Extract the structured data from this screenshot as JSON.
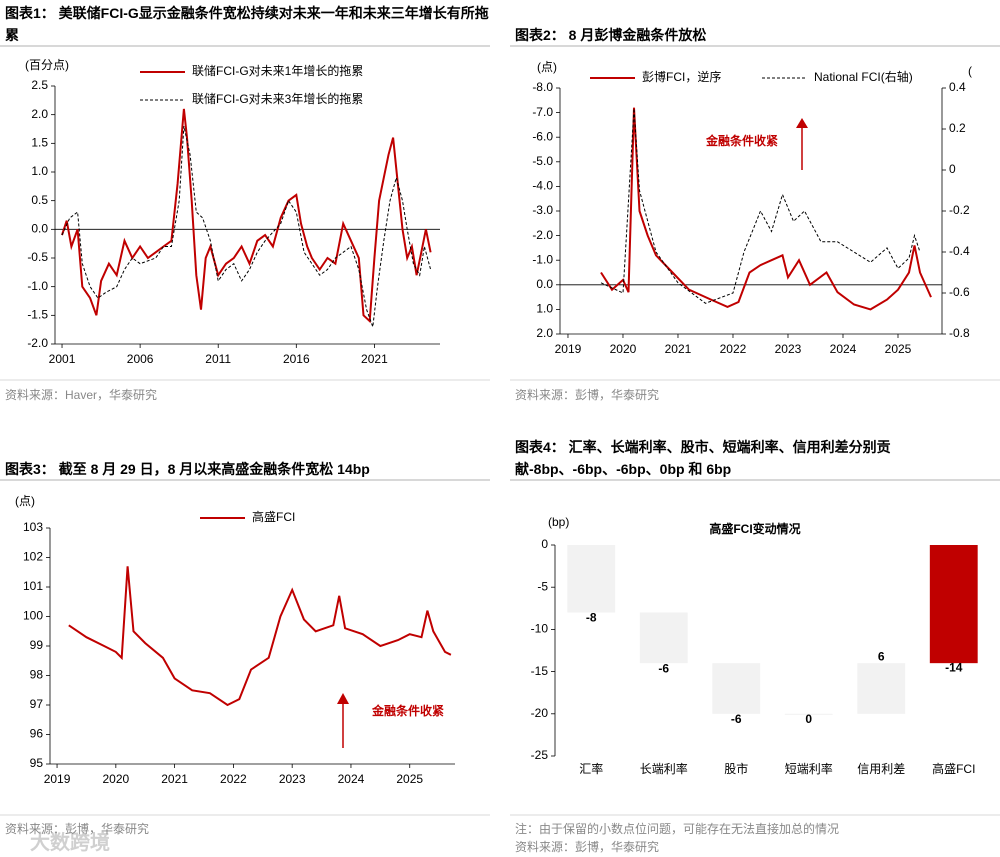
{
  "chart_data": [
    {
      "type": "line",
      "caption": "图表1：  美联储FCI-G显示金融条件宽松持续对未来一年和未来三年增长有所拖累",
      "y_label": "(百分点)",
      "xlim": [
        2000.55,
        2025.2
      ],
      "xticks": [
        2001,
        2006,
        2011,
        2016,
        2021
      ],
      "ylim": [
        -2,
        2.5
      ],
      "yticks": [
        2.5,
        {
          "value": 2,
          "label": "2.0"
        },
        1.5,
        {
          "value": 1,
          "label": "1.0"
        },
        0.5,
        {
          "value": 0,
          "label": "0.0"
        },
        -0.5,
        {
          "value": -1,
          "label": "-1.0"
        },
        -1.5,
        {
          "value": -2,
          "label": "-2.0"
        }
      ],
      "zero_line": true,
      "legend": "top",
      "series": [
        {
          "name": "联储FCI-G对未来1年增长的拖累",
          "color": "#c00000",
          "line_style": "solid",
          "x": [
            2001.0,
            2001.3,
            2001.6,
            2002.0,
            2002.3,
            2002.8,
            2003.2,
            2003.5,
            2004.0,
            2004.5,
            2005.0,
            2005.5,
            2006.0,
            2006.5,
            2007.0,
            2007.5,
            2008.0,
            2008.4,
            2008.8,
            2009.0,
            2009.3,
            2009.6,
            2009.9,
            2010.2,
            2010.5,
            2011.0,
            2011.5,
            2012.0,
            2012.5,
            2013.0,
            2013.5,
            2014.0,
            2014.5,
            2015.0,
            2015.5,
            2016.0,
            2016.3,
            2016.7,
            2017.0,
            2017.5,
            2018.0,
            2018.5,
            2019.0,
            2019.5,
            2020.0,
            2020.3,
            2020.7,
            2021.0,
            2021.3,
            2021.6,
            2021.9,
            2022.2,
            2022.5,
            2022.8,
            2023.1,
            2023.4,
            2023.7,
            2024.0,
            2024.3,
            2024.6
          ],
          "values": [
            -0.1,
            0.15,
            -0.3,
            0.0,
            -1.0,
            -1.2,
            -1.5,
            -0.9,
            -0.6,
            -0.8,
            -0.2,
            -0.5,
            -0.3,
            -0.5,
            -0.4,
            -0.3,
            -0.2,
            0.8,
            2.1,
            1.6,
            0.5,
            -0.8,
            -1.4,
            -0.5,
            -0.3,
            -0.8,
            -0.6,
            -0.5,
            -0.3,
            -0.6,
            -0.2,
            -0.1,
            -0.3,
            0.2,
            0.5,
            0.6,
            0.1,
            -0.3,
            -0.5,
            -0.7,
            -0.5,
            -0.6,
            0.1,
            -0.2,
            -0.5,
            -1.5,
            -1.6,
            -0.5,
            0.5,
            0.9,
            1.3,
            1.6,
            0.8,
            0.0,
            -0.5,
            -0.3,
            -0.8,
            -0.4,
            0.0,
            -0.4
          ]
        },
        {
          "name": "联储FCI-G对未来3年增长的拖累",
          "color": "#000000",
          "line_style": "dashed",
          "x": [
            2001.0,
            2001.5,
            2002.0,
            2002.3,
            2002.8,
            2003.3,
            2003.8,
            2004.5,
            2005.0,
            2005.5,
            2006.0,
            2007.0,
            2007.5,
            2008.0,
            2008.5,
            2008.8,
            2009.2,
            2009.6,
            2010.0,
            2010.5,
            2011.0,
            2011.5,
            2012.0,
            2012.5,
            2013.0,
            2013.5,
            2014.0,
            2015.0,
            2015.5,
            2016.0,
            2016.5,
            2017.0,
            2017.5,
            2018.0,
            2018.5,
            2019.0,
            2019.5,
            2020.0,
            2020.5,
            2020.9,
            2021.2,
            2021.6,
            2022.0,
            2022.4,
            2022.8,
            2023.1,
            2023.5,
            2023.9,
            2024.2,
            2024.6
          ],
          "values": [
            -0.1,
            0.2,
            0.3,
            -0.6,
            -1.0,
            -1.2,
            -1.1,
            -1.0,
            -0.7,
            -0.5,
            -0.6,
            -0.5,
            -0.3,
            -0.3,
            0.5,
            1.8,
            1.3,
            0.3,
            0.2,
            -0.2,
            -0.9,
            -0.7,
            -0.6,
            -0.9,
            -0.7,
            -0.4,
            -0.2,
            0.1,
            0.5,
            0.3,
            -0.4,
            -0.6,
            -0.8,
            -0.7,
            -0.5,
            -0.4,
            -0.3,
            -0.7,
            -1.4,
            -1.7,
            -1.0,
            -0.2,
            0.5,
            0.9,
            0.5,
            0.0,
            -0.6,
            -0.8,
            -0.3,
            -0.7
          ]
        }
      ],
      "source": "资料来源：Haver，华泰研究"
    },
    {
      "type": "line",
      "caption": "图表2：  8 月彭博金融条件放松",
      "y_label": "(点)",
      "y2_label": "(",
      "xlim": [
        2018.855,
        2025.8
      ],
      "xticks": [
        2019,
        2020,
        2021,
        2022,
        2023,
        2024,
        2025
      ],
      "ylim": [
        -8,
        2
      ],
      "y_inverted": true,
      "yticks": [
        {
          "value": -8,
          "label": "-8.0"
        },
        {
          "value": -7,
          "label": "-7.0"
        },
        {
          "value": -6,
          "label": "-6.0"
        },
        {
          "value": -5,
          "label": "-5.0"
        },
        {
          "value": -4,
          "label": "-4.0"
        },
        {
          "value": -3,
          "label": "-3.0"
        },
        {
          "value": -2,
          "label": "-2.0"
        },
        {
          "value": -1,
          "label": "-1.0"
        },
        {
          "value": 0,
          "label": "0.0"
        },
        {
          "value": 1,
          "label": "1.0"
        },
        {
          "value": 2,
          "label": "2.0"
        }
      ],
      "y2lim": [
        -0.8,
        0.4
      ],
      "y2ticks": [
        0.4,
        0.2,
        0,
        -0.2,
        -0.4,
        -0.6,
        -0.8
      ],
      "zero_line": true,
      "legend": "top",
      "annotation": "金融条件收紧",
      "series": [
        {
          "name": "彭博FCI，逆序",
          "color": "#c00000",
          "line_style": "solid",
          "x": [
            2019.6,
            2019.8,
            2020.0,
            2020.1,
            2020.2,
            2020.3,
            2020.45,
            2020.6,
            2020.9,
            2021.2,
            2021.6,
            2021.9,
            2022.1,
            2022.3,
            2022.5,
            2022.7,
            2022.9,
            2023.0,
            2023.2,
            2023.4,
            2023.7,
            2023.9,
            2024.2,
            2024.5,
            2024.8,
            2025.0,
            2025.2,
            2025.3,
            2025.4,
            2025.6
          ],
          "values": [
            -0.5,
            0.2,
            -0.2,
            0.3,
            -7.2,
            -3.0,
            -2.0,
            -1.2,
            -0.5,
            0.2,
            0.6,
            0.9,
            0.7,
            -0.5,
            -0.8,
            -1.0,
            -1.2,
            -0.3,
            -1.0,
            0.0,
            -0.5,
            0.3,
            0.8,
            1.0,
            0.6,
            0.2,
            -0.5,
            -1.6,
            -0.5,
            0.5
          ]
        },
        {
          "name": "National FCI(右轴)",
          "color": "#000000",
          "line_style": "dashed",
          "axis": "y2",
          "x": [
            2019.6,
            2020.0,
            2020.2,
            2020.3,
            2020.6,
            2021.0,
            2021.5,
            2022.0,
            2022.2,
            2022.5,
            2022.7,
            2022.9,
            2023.1,
            2023.3,
            2023.6,
            2023.9,
            2024.2,
            2024.5,
            2024.8,
            2025.0,
            2025.2,
            2025.3,
            2025.4
          ],
          "values": [
            -0.55,
            -0.6,
            0.3,
            -0.1,
            -0.4,
            -0.55,
            -0.65,
            -0.6,
            -0.4,
            -0.2,
            -0.3,
            -0.12,
            -0.25,
            -0.2,
            -0.35,
            -0.35,
            -0.4,
            -0.45,
            -0.38,
            -0.48,
            -0.43,
            -0.32,
            -0.4
          ]
        }
      ],
      "source": "资料来源：彭博，华泰研究"
    },
    {
      "type": "line",
      "caption": "图表3：  截至 8 月 29 日，8 月以来高盛金融条件宽松 14bp",
      "y_label": "(点)",
      "xlim": [
        2018.88,
        2025.77
      ],
      "xticks": [
        2019,
        2020,
        2021,
        2022,
        2023,
        2024,
        2025
      ],
      "ylim": [
        95,
        103
      ],
      "yticks": [
        103,
        102,
        101,
        100,
        99,
        98,
        97,
        96,
        95
      ],
      "legend": "top",
      "annotation": "金融条件收紧",
      "series": [
        {
          "name": "高盛FCI",
          "color": "#c00000",
          "line_style": "solid",
          "x": [
            2019.2,
            2019.5,
            2019.8,
            2020.0,
            2020.1,
            2020.2,
            2020.3,
            2020.5,
            2020.8,
            2021.0,
            2021.3,
            2021.6,
            2021.9,
            2022.1,
            2022.3,
            2022.6,
            2022.8,
            2023.0,
            2023.2,
            2023.4,
            2023.7,
            2023.8,
            2023.9,
            2024.2,
            2024.5,
            2024.8,
            2025.0,
            2025.2,
            2025.3,
            2025.4,
            2025.6,
            2025.7
          ],
          "values": [
            99.7,
            99.3,
            99.0,
            98.8,
            98.6,
            101.7,
            99.5,
            99.1,
            98.6,
            97.9,
            97.5,
            97.4,
            97.0,
            97.2,
            98.2,
            98.6,
            100.0,
            100.9,
            99.9,
            99.5,
            99.7,
            100.7,
            99.6,
            99.4,
            99.0,
            99.2,
            99.4,
            99.3,
            100.2,
            99.5,
            98.8,
            98.7
          ]
        }
      ],
      "source": "资料来源：彭博，华泰研究"
    },
    {
      "type": "waterfall",
      "caption": "图表4：  汇率、长端利率、股市、短端利率、信用利差分别贡献-8bp、-6bp、-6bp、0bp 和 6bp",
      "title": "高盛FCI变动情况",
      "y_label": "(bp)",
      "categories": [
        "汇率",
        "长端利率",
        "股市",
        "短端利率",
        "信用利差",
        "高盛FCI"
      ],
      "values": [
        -8,
        -6,
        -6,
        0,
        6,
        -14
      ],
      "color": "#f2f2f2",
      "total_color": "#c00000",
      "ylim": [
        -25,
        0
      ],
      "yticks": [
        0,
        -5,
        -10,
        -15,
        -20,
        -25
      ],
      "note": "注：由于保留的小数点位问题，可能存在无法直接加总的情况",
      "source": "资料来源：彭博，华泰研究"
    }
  ],
  "watermark": "大数跨境"
}
